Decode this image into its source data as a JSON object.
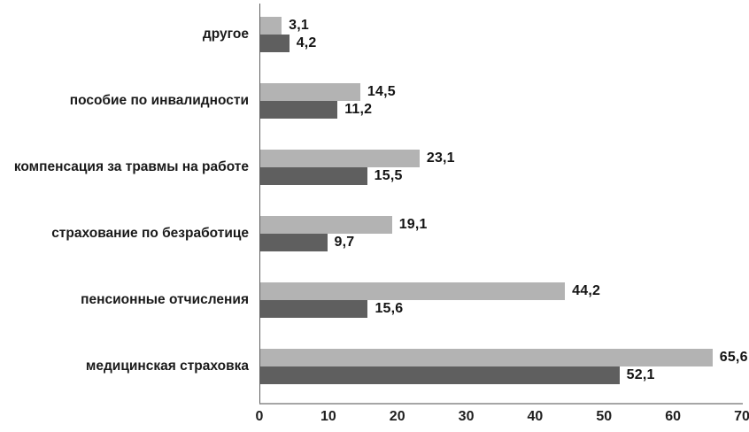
{
  "chart_data": {
    "type": "bar",
    "orientation": "horizontal",
    "title": "",
    "categories": [
      "другое",
      "пособие по инвалидности",
      "компенсация за травмы на работе",
      "страхование по безработице",
      "пенсионные отчисления",
      "медицинская страховка"
    ],
    "series": [
      {
        "name": "light-gray",
        "color": "#b3b3b3",
        "values": [
          3.1,
          14.5,
          23.1,
          19.1,
          44.2,
          65.6
        ],
        "labels": [
          "3,1",
          "14,5",
          "23,1",
          "19,1",
          "44,2",
          "65,6"
        ]
      },
      {
        "name": "dark-gray",
        "color": "#5f5f5f",
        "values": [
          4.2,
          11.2,
          15.5,
          9.7,
          15.6,
          52.1
        ],
        "labels": [
          "4,2",
          "11,2",
          "15,5",
          "9,7",
          "15,6",
          "52,1"
        ]
      }
    ],
    "xlim": [
      0,
      70
    ],
    "x_ticks": [
      "0",
      "10",
      "20",
      "30",
      "40",
      "50",
      "60",
      "70"
    ],
    "grid": "off",
    "legend": "none",
    "value_labels_visible": true
  },
  "colors": {
    "background": "#ffffff",
    "text": "#1a1a1a",
    "vertical_axis": "#5e5e5e",
    "baseline": "#a6a6a6"
  }
}
